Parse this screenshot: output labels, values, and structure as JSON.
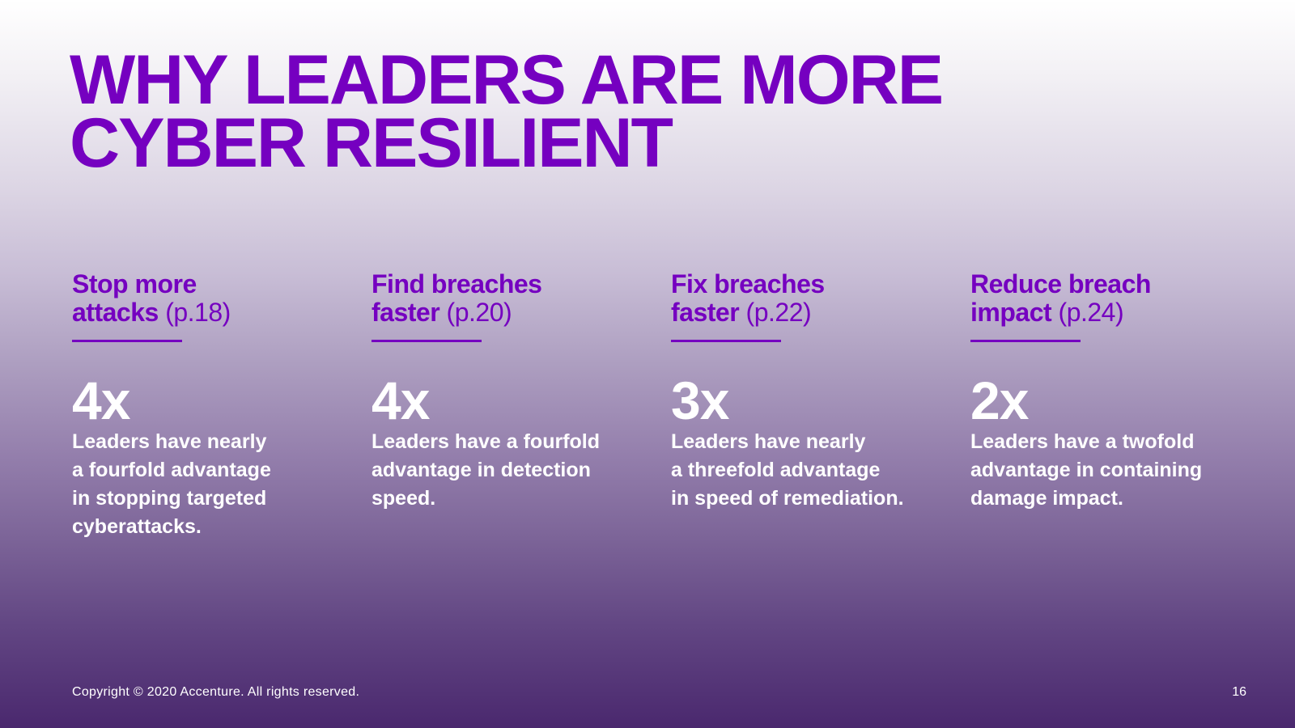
{
  "title": {
    "line1": "WHY LEADERS ARE MORE",
    "line2": "CYBER RESILIENT"
  },
  "columns": [
    {
      "heading_line1": "Stop more",
      "heading_line2": "attacks",
      "page_ref": "(p.18)",
      "stat": "4x",
      "description": [
        "Leaders have nearly",
        "a fourfold advantage",
        "in stopping targeted",
        "cyberattacks."
      ]
    },
    {
      "heading_line1": "Find breaches",
      "heading_line2": "faster",
      "page_ref": "(p.20)",
      "stat": "4x",
      "description": [
        "Leaders have a fourfold",
        "advantage in detection",
        "speed."
      ]
    },
    {
      "heading_line1": "Fix breaches",
      "heading_line2": "faster",
      "page_ref": "(p.22)",
      "stat": "3x",
      "description": [
        "Leaders have nearly",
        "a threefold advantage",
        "in speed of remediation."
      ]
    },
    {
      "heading_line1": "Reduce breach",
      "heading_line2": "impact",
      "page_ref": "(p.24)",
      "stat": "2x",
      "description": [
        "Leaders have a twofold",
        "advantage in containing",
        "damage impact."
      ]
    }
  ],
  "footer": {
    "copyright": "Copyright © 2020 Accenture. All rights reserved.",
    "page_number": "16"
  },
  "colors": {
    "accent": "#7500c0",
    "text_light": "#ffffff"
  }
}
